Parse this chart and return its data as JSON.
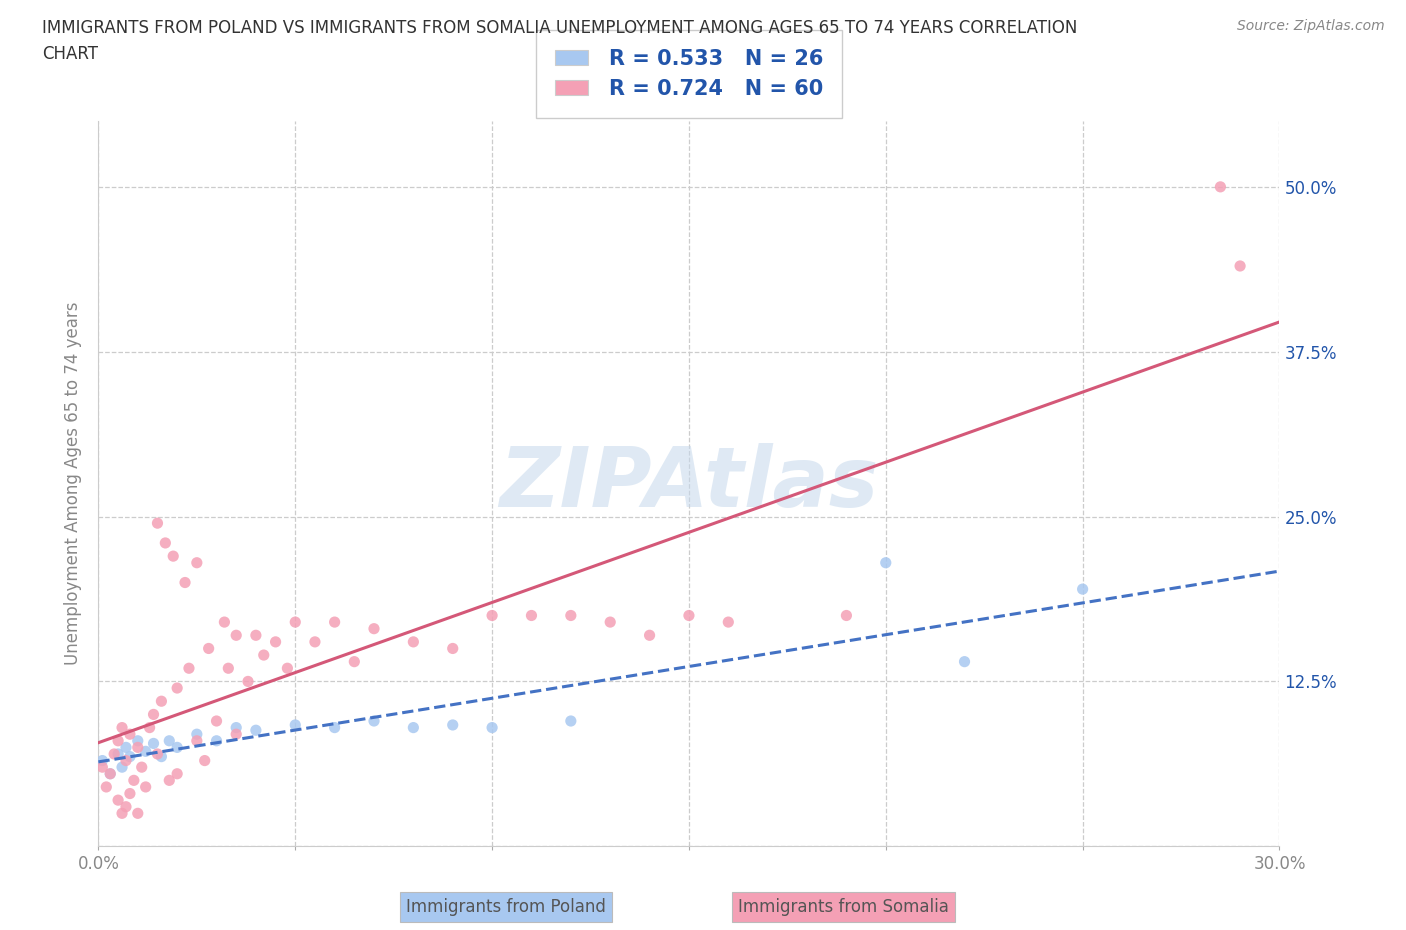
{
  "title_line1": "IMMIGRANTS FROM POLAND VS IMMIGRANTS FROM SOMALIA UNEMPLOYMENT AMONG AGES 65 TO 74 YEARS CORRELATION",
  "title_line2": "CHART",
  "source": "Source: ZipAtlas.com",
  "ylabel": "Unemployment Among Ages 65 to 74 years",
  "watermark": "ZIPAtlas",
  "poland_R": 0.533,
  "poland_N": 26,
  "somalia_R": 0.724,
  "somalia_N": 60,
  "poland_scatter_color": "#A8C8F0",
  "poland_line_color": "#4472C4",
  "somalia_scatter_color": "#F4A0B5",
  "somalia_line_color": "#D45878",
  "legend_text_color": "#2255AA",
  "title_color": "#333333",
  "source_color": "#888888",
  "axis_color": "#888888",
  "grid_color": "#CCCCCC",
  "xlim": [
    0.0,
    0.3
  ],
  "ylim": [
    0.0,
    0.55
  ],
  "poland_x": [
    0.001,
    0.003,
    0.005,
    0.006,
    0.007,
    0.008,
    0.01,
    0.012,
    0.014,
    0.016,
    0.018,
    0.02,
    0.025,
    0.03,
    0.035,
    0.04,
    0.05,
    0.06,
    0.07,
    0.08,
    0.09,
    0.1,
    0.12,
    0.2,
    0.22,
    0.25
  ],
  "poland_y": [
    0.065,
    0.055,
    0.07,
    0.06,
    0.075,
    0.068,
    0.08,
    0.072,
    0.078,
    0.068,
    0.08,
    0.075,
    0.085,
    0.08,
    0.09,
    0.088,
    0.092,
    0.09,
    0.095,
    0.09,
    0.092,
    0.09,
    0.095,
    0.215,
    0.14,
    0.195
  ],
  "somalia_x": [
    0.001,
    0.002,
    0.003,
    0.004,
    0.005,
    0.005,
    0.006,
    0.006,
    0.007,
    0.007,
    0.008,
    0.008,
    0.009,
    0.01,
    0.01,
    0.011,
    0.012,
    0.013,
    0.014,
    0.015,
    0.015,
    0.016,
    0.017,
    0.018,
    0.019,
    0.02,
    0.02,
    0.022,
    0.023,
    0.025,
    0.025,
    0.027,
    0.028,
    0.03,
    0.032,
    0.033,
    0.035,
    0.035,
    0.038,
    0.04,
    0.042,
    0.045,
    0.048,
    0.05,
    0.055,
    0.06,
    0.065,
    0.07,
    0.08,
    0.09,
    0.1,
    0.11,
    0.12,
    0.13,
    0.14,
    0.15,
    0.16,
    0.19,
    0.285,
    0.29
  ],
  "somalia_y": [
    0.06,
    0.045,
    0.055,
    0.07,
    0.035,
    0.08,
    0.025,
    0.09,
    0.03,
    0.065,
    0.04,
    0.085,
    0.05,
    0.025,
    0.075,
    0.06,
    0.045,
    0.09,
    0.1,
    0.07,
    0.245,
    0.11,
    0.23,
    0.05,
    0.22,
    0.055,
    0.12,
    0.2,
    0.135,
    0.08,
    0.215,
    0.065,
    0.15,
    0.095,
    0.17,
    0.135,
    0.16,
    0.085,
    0.125,
    0.16,
    0.145,
    0.155,
    0.135,
    0.17,
    0.155,
    0.17,
    0.14,
    0.165,
    0.155,
    0.15,
    0.175,
    0.175,
    0.175,
    0.17,
    0.16,
    0.175,
    0.17,
    0.175,
    0.5,
    0.44
  ],
  "bottom_label1": "Immigrants from Poland",
  "bottom_label2": "Immigrants from Somalia"
}
